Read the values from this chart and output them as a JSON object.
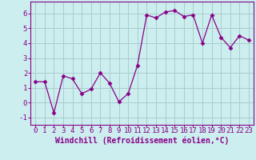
{
  "x": [
    0,
    1,
    2,
    3,
    4,
    5,
    6,
    7,
    8,
    9,
    10,
    11,
    12,
    13,
    14,
    15,
    16,
    17,
    18,
    19,
    20,
    21,
    22,
    23
  ],
  "y": [
    1.4,
    1.4,
    -0.7,
    1.8,
    1.6,
    0.6,
    0.9,
    2.0,
    1.3,
    0.05,
    0.6,
    2.5,
    5.9,
    5.7,
    6.1,
    6.2,
    5.8,
    5.9,
    4.0,
    5.9,
    4.4,
    3.7,
    4.5,
    4.2
  ],
  "line_color": "#880088",
  "marker": "D",
  "marker_size": 2.5,
  "bg_color": "#cceeee",
  "grid_color": "#aacccc",
  "xlabel": "Windchill (Refroidissement éolien,°C)",
  "xlabel_fontsize": 7,
  "tick_fontsize": 6.5,
  "ylim": [
    -1.5,
    6.8
  ],
  "xlim": [
    -0.5,
    23.5
  ],
  "yticks": [
    -1,
    0,
    1,
    2,
    3,
    4,
    5,
    6
  ],
  "xticks": [
    0,
    1,
    2,
    3,
    4,
    5,
    6,
    7,
    8,
    9,
    10,
    11,
    12,
    13,
    14,
    15,
    16,
    17,
    18,
    19,
    20,
    21,
    22,
    23
  ]
}
